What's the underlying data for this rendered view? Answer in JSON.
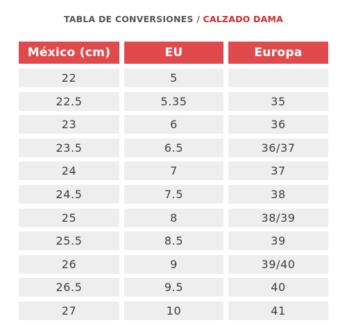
{
  "title": {
    "part1": "TABLA DE CONVERSIONES",
    "separator": "/",
    "part2": "CALZADO DAMA"
  },
  "colors": {
    "header_bg": "#e14a4d",
    "accent_text": "#d7262b",
    "row_bg": "#eeeeee",
    "text": "#3d3d3d"
  },
  "table": {
    "headers": [
      "México (cm)",
      "EU",
      "Europa"
    ],
    "rows": [
      [
        "22",
        "5",
        ""
      ],
      [
        "22.5",
        "5.35",
        "35"
      ],
      [
        "23",
        "6",
        "36"
      ],
      [
        "23.5",
        "6.5",
        "36/37"
      ],
      [
        "24",
        "7",
        "37"
      ],
      [
        "24.5",
        "7.5",
        "38"
      ],
      [
        "25",
        "8",
        "38/39"
      ],
      [
        "25.5",
        "8.5",
        "39"
      ],
      [
        "26",
        "9",
        "39/40"
      ],
      [
        "26.5",
        "9.5",
        "40"
      ],
      [
        "27",
        "10",
        "41"
      ]
    ]
  }
}
